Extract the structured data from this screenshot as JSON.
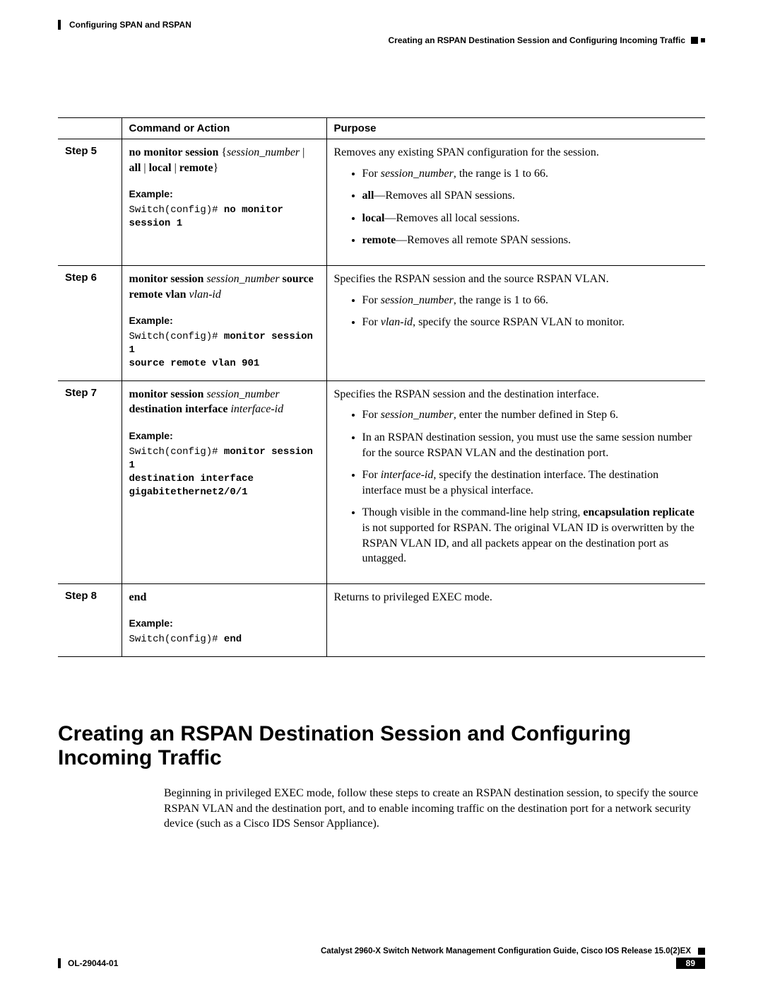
{
  "header": {
    "chapter_title": "Configuring SPAN and RSPAN",
    "section_title_small": "Creating an RSPAN Destination Session and Configuring Incoming Traffic"
  },
  "table": {
    "headers": {
      "command": "Command or Action",
      "purpose": "Purpose"
    },
    "steps": {
      "5": {
        "label": "Step 5",
        "command_html": "<span class='b'>no monitor session</span> {<span class='i'>session_number</span> | <span class='b'>all</span> | <span class='b'>local</span> | <span class='b'>remote</span>}",
        "example_label": "Example:",
        "example_html": "Switch(config)# <span class='b'>no monitor session 1</span>",
        "purpose_intro": "Removes any existing SPAN configuration for the session.",
        "bullets": [
          "For <span class='i'>session_number</span>, the range is 1 to 66.",
          "<span class='b'>all</span>—Removes all SPAN sessions.",
          "<span class='b'>local</span>—Removes all local sessions.",
          "<span class='b'>remote</span>—Removes all remote SPAN sessions."
        ]
      },
      "6": {
        "label": "Step 6",
        "command_html": "<span class='b'>monitor session</span> <span class='i'>session_number</span> <span class='b'>source remote vlan</span> <span class='i'>vlan-id</span>",
        "example_label": "Example:",
        "example_html": "Switch(config)# <span class='b'>monitor session 1\nsource remote vlan 901</span>",
        "purpose_intro": "Specifies the RSPAN session and the source RSPAN VLAN.",
        "bullets": [
          "For <span class='i'>session_number</span>, the range is 1 to 66.",
          "For <span class='i'>vlan-id</span>, specify the source RSPAN VLAN to monitor."
        ]
      },
      "7": {
        "label": "Step 7",
        "command_html": "<span class='b'>monitor session</span> <span class='i'>session_number</span> <span class='b'>destination interface</span> <span class='i'>interface-id</span>",
        "example_label": "Example:",
        "example_html": "Switch(config)# <span class='b'>monitor session 1\ndestination interface\ngigabitethernet2/0/1</span>",
        "purpose_intro": "Specifies the RSPAN session and the destination interface.",
        "bullets": [
          "For <span class='i'>session_number</span>, enter the number defined in Step 6.",
          "In an RSPAN destination session, you must use the same session number for the source RSPAN VLAN and the destination port.",
          "For <span class='i'>interface-id</span>, specify the destination interface. The destination interface must be a physical interface.",
          "Though visible in the command-line help string, <span class='b'>encapsulation replicate</span> is not supported for RSPAN. The original VLAN ID is overwritten by the RSPAN VLAN ID, and all packets appear on the destination port as untagged."
        ]
      },
      "8": {
        "label": "Step 8",
        "command_html": "<span class='b'>end</span>",
        "example_label": "Example:",
        "example_html": "Switch(config)# <span class='b'>end</span>",
        "purpose_intro": "Returns to privileged EXEC mode.",
        "bullets": []
      }
    }
  },
  "section": {
    "heading": "Creating an RSPAN Destination Session and Configuring Incoming Traffic",
    "intro": "Beginning in privileged EXEC mode, follow these steps to create an RSPAN destination session, to specify the source RSPAN VLAN and the destination port, and to enable incoming traffic on the destination port for a network security device (such as a Cisco IDS Sensor Appliance)."
  },
  "footer": {
    "guide": "Catalyst 2960-X Switch Network Management Configuration Guide, Cisco IOS Release 15.0(2)EX",
    "doc_id": "OL-29044-01",
    "page": "89"
  }
}
